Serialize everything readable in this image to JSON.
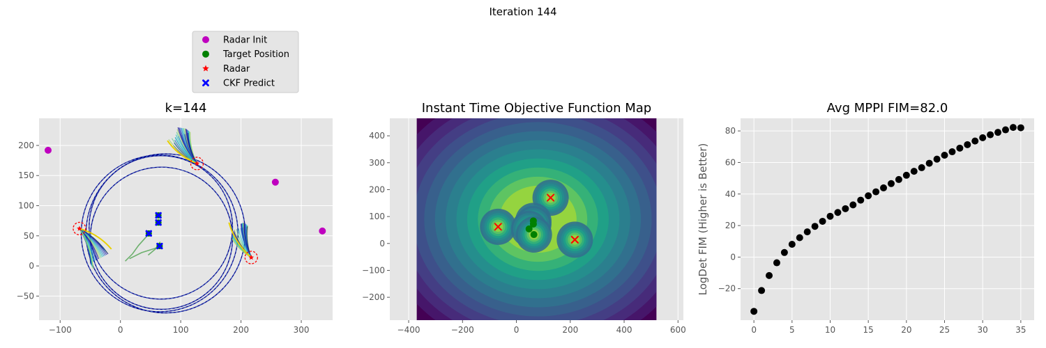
{
  "suptitle": "Iteration 144",
  "colors": {
    "axes_bg": "#e5e5e5",
    "grid": "#ffffff",
    "tick_text": "#555555",
    "radar_init": "#bf00bf",
    "target": "#008000",
    "radar": "#ff0000",
    "ckf": "#0000ff",
    "circle": "#00008b",
    "points": "#000000"
  },
  "legend": {
    "entries": [
      {
        "label": "Radar Init",
        "marker": "circle",
        "color": "#bf00bf"
      },
      {
        "label": "Target Position",
        "marker": "circle",
        "color": "#008000"
      },
      {
        "label": "Radar",
        "marker": "star",
        "color": "#ff0000"
      },
      {
        "label": "CKF Predict",
        "marker": "x",
        "color": "#0000ff"
      }
    ]
  },
  "chart_data": [
    {
      "type": "scatter",
      "title": "k=144",
      "xlim": [
        -135,
        352
      ],
      "ylim": [
        -90,
        245
      ],
      "xticks": [
        -100,
        0,
        100,
        200,
        300
      ],
      "yticks": [
        -50,
        0,
        50,
        100,
        150,
        200
      ],
      "radar_init": [
        [
          -120,
          192
        ],
        [
          257,
          139
        ],
        [
          335,
          58
        ]
      ],
      "radars": [
        [
          -68,
          62
        ],
        [
          127,
          170
        ],
        [
          217,
          14
        ]
      ],
      "targets": [
        [
          63,
          84
        ],
        [
          63,
          72
        ],
        [
          47,
          54
        ],
        [
          65,
          33
        ]
      ],
      "ckf_predict": [
        [
          63,
          84
        ],
        [
          63,
          72
        ],
        [
          47,
          54
        ],
        [
          65,
          33
        ]
      ],
      "circles": [
        {
          "cx": 65,
          "cy": 54,
          "r": 130
        },
        {
          "cx": 67,
          "cy": 64,
          "r": 119
        },
        {
          "cx": 75,
          "cy": 54,
          "r": 132
        },
        {
          "cx": 68,
          "cy": 46,
          "r": 118
        }
      ],
      "target_paths": [
        [
          [
            48,
            54
          ],
          [
            30,
            34
          ],
          [
            20,
            20
          ],
          [
            8,
            8
          ]
        ],
        [
          [
            60,
            30
          ],
          [
            35,
            22
          ],
          [
            15,
            12
          ]
        ],
        [
          [
            66,
            40
          ],
          [
            58,
            28
          ],
          [
            46,
            18
          ]
        ]
      ],
      "fans": [
        {
          "radar": [
            -68,
            62
          ],
          "tips": [
            [
              -30,
              30
            ],
            [
              -20,
              20
            ],
            [
              -35,
              12
            ],
            [
              -50,
              5
            ],
            [
              -45,
              -5
            ]
          ],
          "yellow_tip": [
            -15,
            28
          ]
        },
        {
          "radar": [
            127,
            170
          ],
          "tips": [
            [
              88,
              200
            ],
            [
              95,
              230
            ],
            [
              108,
              228
            ],
            [
              116,
              222
            ],
            [
              80,
              210
            ]
          ],
          "yellow_tip": [
            78,
            208
          ]
        },
        {
          "radar": [
            217,
            14
          ],
          "tips": [
            [
              200,
              70
            ],
            [
              205,
              72
            ],
            [
              212,
              66
            ],
            [
              188,
              60
            ],
            [
              185,
              45
            ]
          ],
          "yellow_tip": [
            180,
            72
          ]
        }
      ]
    },
    {
      "type": "heatmap",
      "title": "Instant Time Objective Function Map",
      "xlim": [
        -470,
        620
      ],
      "ylim": [
        -285,
        465
      ],
      "extent": {
        "x": [
          -370,
          520
        ],
        "y": [
          -285,
          465
        ]
      },
      "xticks": [
        -400,
        -200,
        0,
        200,
        400,
        600
      ],
      "yticks": [
        -200,
        -100,
        0,
        100,
        200,
        300,
        400
      ],
      "radars": [
        [
          -68,
          62
        ],
        [
          127,
          170
        ],
        [
          217,
          14
        ]
      ],
      "targets": [
        [
          63,
          84
        ],
        [
          63,
          72
        ],
        [
          47,
          54
        ],
        [
          65,
          33
        ]
      ],
      "levels": 13
    },
    {
      "type": "scatter",
      "title": "Avg MPPI FIM=82.0",
      "ylabel": "LogDet FIM (Higher is Better)",
      "xlim": [
        -1.75,
        36.75
      ],
      "ylim": [
        -40,
        88
      ],
      "xticks": [
        0,
        5,
        10,
        15,
        20,
        25,
        30,
        35
      ],
      "yticks": [
        -20,
        0,
        20,
        40,
        60,
        80
      ],
      "x": [
        0,
        1,
        2,
        3,
        4,
        5,
        6,
        7,
        8,
        9,
        10,
        11,
        12,
        13,
        14,
        15,
        16,
        17,
        18,
        19,
        20,
        21,
        22,
        23,
        24,
        25,
        26,
        27,
        28,
        29,
        30,
        31,
        32,
        33,
        34,
        35
      ],
      "y": [
        -34.4,
        -21.2,
        -11.7,
        -3.6,
        2.9,
        8.1,
        12.3,
        16.0,
        19.5,
        22.7,
        25.9,
        28.3,
        30.7,
        33.1,
        36.1,
        38.9,
        41.4,
        43.9,
        46.6,
        49.2,
        51.9,
        54.4,
        56.7,
        59.5,
        62.1,
        64.6,
        66.8,
        69.1,
        71.3,
        73.6,
        75.7,
        77.6,
        79.1,
        80.7,
        82.2,
        82.0
      ]
    }
  ]
}
